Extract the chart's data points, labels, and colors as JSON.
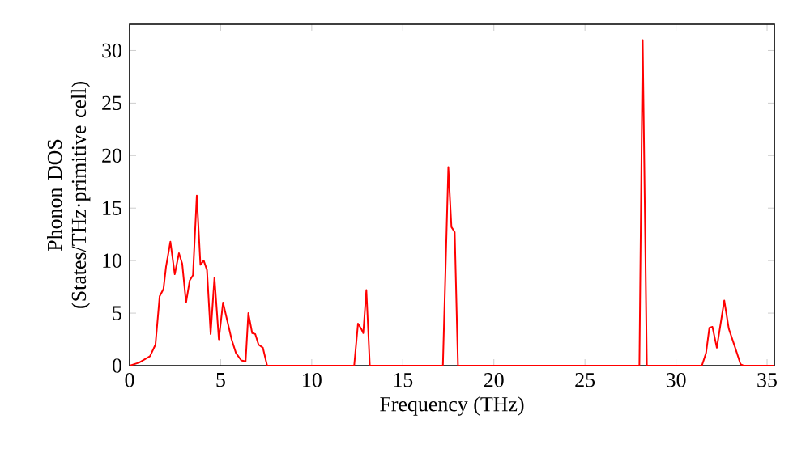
{
  "chart_data": {
    "type": "line",
    "xlabel": "Frequency (THz)",
    "ylabel": "Phonon DOS (States/THz·primitive cell)",
    "xlim": [
      0,
      35.4
    ],
    "ylim": [
      0,
      32.5
    ],
    "xticks": [
      0,
      5,
      10,
      15,
      20,
      25,
      30,
      35
    ],
    "yticks": [
      0,
      5,
      10,
      15,
      20,
      25,
      30
    ],
    "marker": "none",
    "line_style": "solid",
    "series": [
      {
        "color": "#ff0000",
        "x": [
          0,
          0.53,
          1.12,
          1.42,
          1.65,
          1.86,
          2.0,
          2.24,
          2.48,
          2.71,
          2.89,
          3.1,
          3.3,
          3.48,
          3.69,
          3.89,
          4.07,
          4.25,
          4.45,
          4.66,
          4.9,
          5.13,
          5.4,
          5.6,
          5.84,
          6.13,
          6.37,
          6.52,
          6.73,
          6.9,
          7.08,
          7.32,
          7.55,
          12.33,
          12.54,
          12.72,
          12.83,
          13.0,
          13.19,
          17.2,
          17.5,
          17.67,
          17.85,
          18.03,
          27.99,
          28.17,
          28.4,
          31.42,
          31.65,
          31.83,
          32.0,
          32.24,
          32.65,
          32.9,
          33.25,
          33.54,
          33.7,
          35.4
        ],
        "values": [
          0,
          0.3,
          0.9,
          2.0,
          6.6,
          7.3,
          9.4,
          11.8,
          8.7,
          10.7,
          9.7,
          6.0,
          8.1,
          8.6,
          16.2,
          9.6,
          10.0,
          9.1,
          3.0,
          8.4,
          2.5,
          6.0,
          4.0,
          2.5,
          1.2,
          0.5,
          0.4,
          5.0,
          3.1,
          3.0,
          2.0,
          1.7,
          0,
          0,
          4.0,
          3.5,
          3.1,
          7.2,
          0,
          0,
          18.9,
          13.2,
          12.7,
          0,
          0,
          31.0,
          0,
          0,
          1.2,
          3.6,
          3.7,
          1.7,
          6.2,
          3.5,
          1.7,
          0.15,
          0,
          0
        ]
      }
    ]
  }
}
